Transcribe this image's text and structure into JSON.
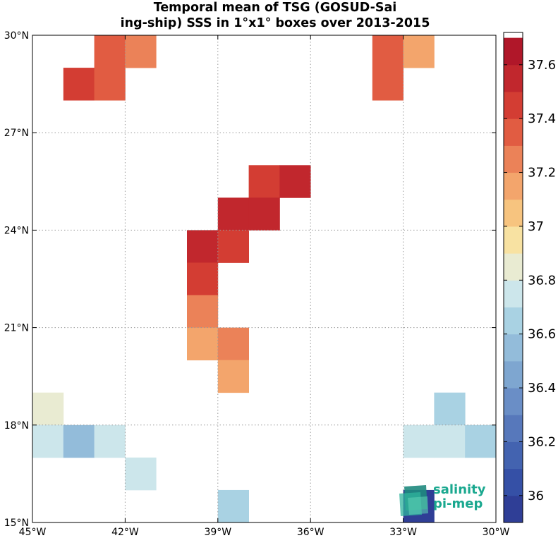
{
  "title": {
    "line1": "Temporal mean of TSG (GOSUD-Sai",
    "line2": "ing-ship) SSS in 1°x1° boxes over 2013-2015"
  },
  "map": {
    "lon_range": [
      -45,
      -30
    ],
    "lat_range": [
      15,
      30
    ],
    "grid": "dotted",
    "x_ticks": [
      {
        "value": -45,
        "label": "45°W"
      },
      {
        "value": -42,
        "label": "42°W"
      },
      {
        "value": -39,
        "label": "39°W"
      },
      {
        "value": -36,
        "label": "36°W"
      },
      {
        "value": -33,
        "label": "33°W"
      },
      {
        "value": -30,
        "label": "30°W"
      }
    ],
    "y_ticks": [
      {
        "value": 15,
        "label": "15°N"
      },
      {
        "value": 18,
        "label": "18°N"
      },
      {
        "value": 21,
        "label": "21°N"
      },
      {
        "value": 24,
        "label": "24°N"
      },
      {
        "value": 27,
        "label": "27°N"
      },
      {
        "value": 30,
        "label": "30°N"
      }
    ]
  },
  "chart_data": {
    "type": "heatmap",
    "cell_size_deg": 1,
    "cells": [
      {
        "lon": -43,
        "lat": 29,
        "value": 37.35
      },
      {
        "lon": -42,
        "lat": 29,
        "value": 37.22
      },
      {
        "lon": -44,
        "lat": 28,
        "value": 37.45
      },
      {
        "lon": -43,
        "lat": 28,
        "value": 37.35
      },
      {
        "lon": -34,
        "lat": 29,
        "value": 37.35
      },
      {
        "lon": -33,
        "lat": 29,
        "value": 37.15
      },
      {
        "lon": -34,
        "lat": 28,
        "value": 37.35
      },
      {
        "lon": -38,
        "lat": 25,
        "value": 37.45
      },
      {
        "lon": -37,
        "lat": 25,
        "value": 37.55
      },
      {
        "lon": -39,
        "lat": 24,
        "value": 37.55
      },
      {
        "lon": -38,
        "lat": 24,
        "value": 37.55
      },
      {
        "lon": -40,
        "lat": 23,
        "value": 37.55
      },
      {
        "lon": -39,
        "lat": 23,
        "value": 37.45
      },
      {
        "lon": -40,
        "lat": 22,
        "value": 37.45
      },
      {
        "lon": -40,
        "lat": 21,
        "value": 37.22
      },
      {
        "lon": -40,
        "lat": 20,
        "value": 37.15
      },
      {
        "lon": -39,
        "lat": 20,
        "value": 37.22
      },
      {
        "lon": -39,
        "lat": 19,
        "value": 37.15
      },
      {
        "lon": -45,
        "lat": 18,
        "value": 36.85
      },
      {
        "lon": -45,
        "lat": 17,
        "value": 36.75
      },
      {
        "lon": -44,
        "lat": 17,
        "value": 36.5
      },
      {
        "lon": -43,
        "lat": 17,
        "value": 36.7
      },
      {
        "lon": -42,
        "lat": 16,
        "value": 36.7
      },
      {
        "lon": -39,
        "lat": 15,
        "value": 36.6
      },
      {
        "lon": -32,
        "lat": 18,
        "value": 36.6
      },
      {
        "lon": -33,
        "lat": 17,
        "value": 36.7
      },
      {
        "lon": -32,
        "lat": 17,
        "value": 36.7
      },
      {
        "lon": -31,
        "lat": 17,
        "value": 36.6
      },
      {
        "lon": -33,
        "lat": 15,
        "value": 35.95
      }
    ],
    "colorbar": {
      "vmin": 35.9,
      "vmax": 37.72,
      "step": 0.1,
      "ticks": [
        36,
        36.2,
        36.4,
        36.6,
        36.8,
        37,
        37.2,
        37.4,
        37.6
      ],
      "tick_labels": [
        "36",
        "36.2",
        "36.4",
        "36.6",
        "36.8",
        "37",
        "37.2",
        "37.4",
        "37.6"
      ],
      "colors": [
        "#2f3e96",
        "#3550a6",
        "#4363b0",
        "#5778bb",
        "#6a8ec6",
        "#7ea6d0",
        "#93bcda",
        "#a9d2e3",
        "#cce6eb",
        "#e9ebd2",
        "#f8e2a2",
        "#f7c47f",
        "#f3a56c",
        "#eb8258",
        "#e15c42",
        "#d33d33",
        "#c1272d",
        "#b01729"
      ]
    }
  },
  "logo": {
    "line1": "salinity",
    "line2": "pi-mep",
    "accent_color": "#1aa88f"
  }
}
